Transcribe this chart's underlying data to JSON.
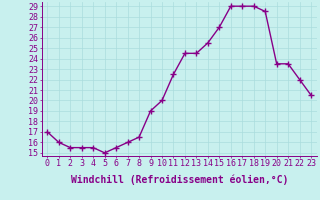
{
  "x": [
    0,
    1,
    2,
    3,
    4,
    5,
    6,
    7,
    8,
    9,
    10,
    11,
    12,
    13,
    14,
    15,
    16,
    17,
    18,
    19,
    20,
    21,
    22,
    23
  ],
  "y": [
    17,
    16,
    15.5,
    15.5,
    15.5,
    15,
    15.5,
    16,
    16.5,
    19,
    20,
    22.5,
    24.5,
    24.5,
    25.5,
    27,
    29,
    29,
    29,
    28.5,
    23.5,
    23.5,
    22,
    20.5
  ],
  "ylim_min": 14.7,
  "ylim_max": 29.4,
  "yticks": [
    15,
    16,
    17,
    18,
    19,
    20,
    21,
    22,
    23,
    24,
    25,
    26,
    27,
    28,
    29
  ],
  "xticks": [
    0,
    1,
    2,
    3,
    4,
    5,
    6,
    7,
    8,
    9,
    10,
    11,
    12,
    13,
    14,
    15,
    16,
    17,
    18,
    19,
    20,
    21,
    22,
    23
  ],
  "xlabel": "Windchill (Refroidissement éolien,°C)",
  "line_color": "#880088",
  "bg_color": "#c8f0ee",
  "grid_color": "#aadddd",
  "marker": "+",
  "markersize": 4,
  "linewidth": 1.0,
  "xlabel_fontsize": 7,
  "tick_fontsize": 6,
  "title_color": "#880088"
}
